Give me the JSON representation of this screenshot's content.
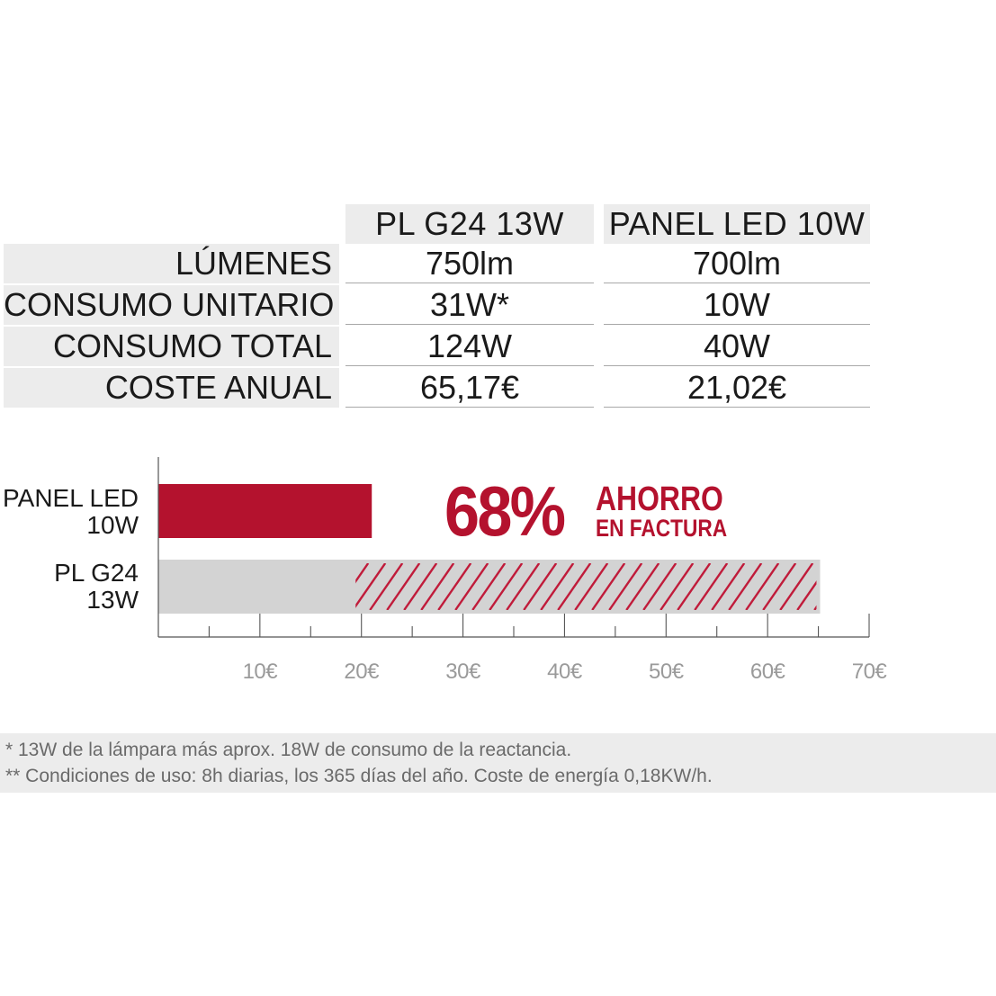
{
  "table": {
    "headers": [
      "PL G24 13W",
      "PANEL LED 10W"
    ],
    "rows": [
      {
        "label": "LÚMENES",
        "values": [
          "750lm",
          "700lm"
        ]
      },
      {
        "label": "CONSUMO UNITARIO",
        "values": [
          "31W*",
          "10W"
        ]
      },
      {
        "label": "CONSUMO TOTAL",
        "values": [
          "124W",
          "40W"
        ]
      },
      {
        "label": "COSTE ANUAL",
        "values": [
          "65,17€",
          "21,02€"
        ]
      }
    ]
  },
  "chart_data": {
    "type": "bar",
    "orientation": "horizontal",
    "categories": [
      {
        "line1": "PANEL LED",
        "line2": "10W"
      },
      {
        "line1": "PL G24",
        "line2": "13W"
      }
    ],
    "values": [
      21.02,
      65.17
    ],
    "xlim": [
      0,
      70
    ],
    "ticks": [
      "10€",
      "20€",
      "30€",
      "40€",
      "50€",
      "60€",
      "70€"
    ],
    "tick_values": [
      10,
      20,
      30,
      40,
      50,
      60,
      70
    ],
    "grid": false,
    "colors": {
      "led": "#b4122e",
      "pl": "#d3d3d3",
      "hatch": "#c01b3a",
      "savings": "#b4122e"
    },
    "annotation": {
      "percent": "68%",
      "line1": "AHORRO",
      "line2": "EN FACTURA"
    }
  },
  "footnotes": [
    "* 13W de la lámpara más aprox. 18W de consumo de la reactancia.",
    "** Condiciones de uso: 8h diarias, los 365 días del año. Coste de energía 0,18KW/h."
  ]
}
